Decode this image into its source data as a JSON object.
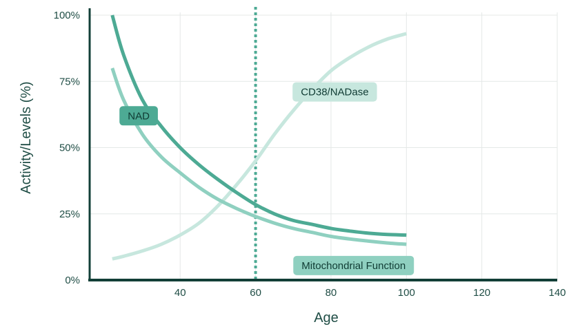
{
  "chart_data": {
    "type": "line",
    "xlabel": "Age",
    "ylabel": "Activity/Levels (%)",
    "xlim": [
      16,
      140
    ],
    "ylim": [
      0,
      100
    ],
    "x_ticks": [
      {
        "value": 40,
        "label": "40"
      },
      {
        "value": 60,
        "label": "60"
      },
      {
        "value": 80,
        "label": "80"
      },
      {
        "value": 100,
        "label": "100"
      },
      {
        "value": 120,
        "label": "120"
      },
      {
        "value": 140,
        "label": "140"
      }
    ],
    "y_ticks": [
      {
        "value": 0,
        "label": "0%"
      },
      {
        "value": 25,
        "label": "25%"
      },
      {
        "value": 50,
        "label": "50%"
      },
      {
        "value": 75,
        "label": "75%"
      },
      {
        "value": 100,
        "label": "100%"
      }
    ],
    "grid": true,
    "reference_line": {
      "x": 60,
      "style": "dotted",
      "color": "#4daa94"
    },
    "series": [
      {
        "name": "NAD",
        "color": "#4daa94",
        "points": [
          [
            22,
            100
          ],
          [
            25,
            85
          ],
          [
            30,
            68
          ],
          [
            35,
            58
          ],
          [
            40,
            50
          ],
          [
            45,
            43.5
          ],
          [
            50,
            38
          ],
          [
            55,
            33
          ],
          [
            60,
            28.5
          ],
          [
            65,
            25
          ],
          [
            70,
            22.5
          ],
          [
            75,
            21
          ],
          [
            80,
            19.5
          ],
          [
            85,
            18.5
          ],
          [
            90,
            17.7
          ],
          [
            95,
            17.2
          ],
          [
            100,
            17
          ]
        ]
      },
      {
        "name": "Mitochondrial Function",
        "color": "#8fd0c0",
        "points": [
          [
            22,
            80
          ],
          [
            25,
            68
          ],
          [
            30,
            55
          ],
          [
            35,
            46.5
          ],
          [
            40,
            40.5
          ],
          [
            45,
            35
          ],
          [
            50,
            30.5
          ],
          [
            55,
            27
          ],
          [
            60,
            24
          ],
          [
            65,
            21.5
          ],
          [
            70,
            19.5
          ],
          [
            75,
            18
          ],
          [
            80,
            16.5
          ],
          [
            85,
            15.5
          ],
          [
            90,
            14.7
          ],
          [
            95,
            14
          ],
          [
            100,
            13.5
          ]
        ]
      },
      {
        "name": "CD38/NADase",
        "color": "#c7e7de",
        "points": [
          [
            22,
            8
          ],
          [
            25,
            9
          ],
          [
            30,
            11
          ],
          [
            35,
            13.5
          ],
          [
            40,
            17
          ],
          [
            45,
            21.5
          ],
          [
            50,
            28
          ],
          [
            55,
            36
          ],
          [
            60,
            45
          ],
          [
            65,
            55
          ],
          [
            70,
            64
          ],
          [
            75,
            72
          ],
          [
            80,
            79
          ],
          [
            85,
            84
          ],
          [
            90,
            88
          ],
          [
            95,
            91
          ],
          [
            100,
            93
          ]
        ]
      }
    ],
    "labels": [
      {
        "text": "NAD",
        "color": "#4daa94",
        "text_color": "#0f3b33",
        "x": 29,
        "y": 62
      },
      {
        "text": "CD38/NADase",
        "color": "#c7e7de",
        "text_color": "#0f3b33",
        "x": 81,
        "y": 71
      },
      {
        "text": "Mitochondrial Function",
        "color": "#8fd0c0",
        "text_color": "#0f3b33",
        "x": 86,
        "y": 5.5
      }
    ]
  }
}
